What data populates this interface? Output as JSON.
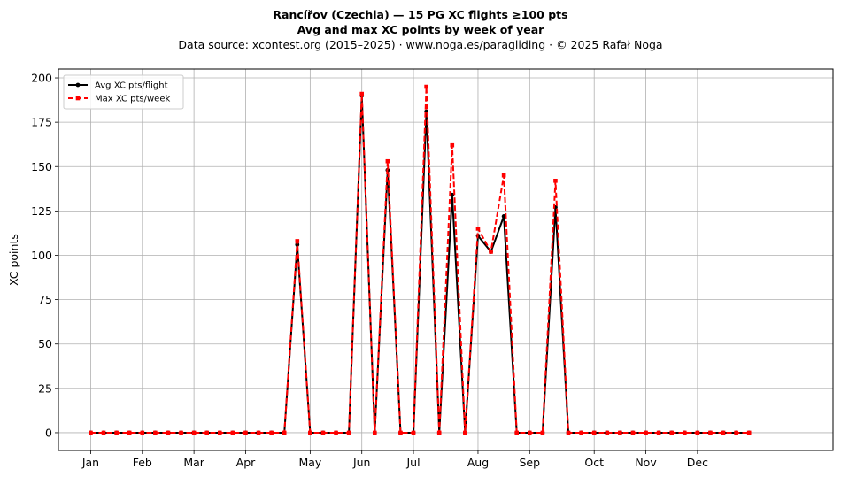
{
  "chart_data": {
    "type": "line",
    "title": "Rancířov (Czechia)  —  15 PG XC flights ≥100 pts",
    "subtitle": "Avg and max XC points by week of year",
    "source": "Data source: xcontest.org (2015–2025)  ·  www.noga.es/paragliding  ·  © 2025 Rafał Noga",
    "xlabel": "",
    "ylabel": "XC points",
    "ylim": [
      -10,
      205
    ],
    "yticks": [
      0,
      25,
      50,
      75,
      100,
      125,
      150,
      175,
      200
    ],
    "xlim": [
      -2.5,
      57.5
    ],
    "month_ticks": [
      {
        "label": "Jan",
        "week": 0
      },
      {
        "label": "Feb",
        "week": 4
      },
      {
        "label": "Mar",
        "week": 8
      },
      {
        "label": "Apr",
        "week": 12
      },
      {
        "label": "May",
        "week": 17
      },
      {
        "label": "Jun",
        "week": 21
      },
      {
        "label": "Jul",
        "week": 25
      },
      {
        "label": "Aug",
        "week": 30
      },
      {
        "label": "Sep",
        "week": 34
      },
      {
        "label": "Oct",
        "week": 39
      },
      {
        "label": "Nov",
        "week": 43
      },
      {
        "label": "Dec",
        "week": 47
      }
    ],
    "grid": true,
    "legend_position": "top-left",
    "x": [
      0,
      1,
      2,
      3,
      4,
      5,
      6,
      7,
      8,
      9,
      10,
      11,
      12,
      13,
      14,
      15,
      16,
      17,
      18,
      19,
      20,
      21,
      22,
      23,
      24,
      25,
      26,
      27,
      28,
      29,
      30,
      31,
      32,
      33,
      34,
      35,
      36,
      37,
      38,
      39,
      40,
      41,
      42,
      43,
      44,
      45,
      46,
      47,
      48,
      49,
      50,
      51
    ],
    "series": [
      {
        "name": "Avg XC pts/flight",
        "color": "#000000",
        "style": "solid",
        "marker": "circle",
        "values": [
          0,
          0,
          0,
          0,
          0,
          0,
          0,
          0,
          0,
          0,
          0,
          0,
          0,
          0,
          0,
          0,
          106,
          0,
          0,
          0,
          0,
          190,
          0,
          148,
          0,
          0,
          181,
          0,
          134,
          0,
          111,
          102,
          122,
          0,
          0,
          0,
          127,
          0,
          0,
          0,
          0,
          0,
          0,
          0,
          0,
          0,
          0,
          0,
          0,
          0,
          0,
          0
        ]
      },
      {
        "name": "Max XC pts/week",
        "color": "#ff0000",
        "style": "dashed",
        "marker": "square",
        "values": [
          0,
          0,
          0,
          0,
          0,
          0,
          0,
          0,
          0,
          0,
          0,
          0,
          0,
          0,
          0,
          0,
          108,
          0,
          0,
          0,
          0,
          191,
          0,
          153,
          0,
          0,
          195,
          0,
          162,
          0,
          115,
          102,
          145,
          0,
          0,
          0,
          142,
          0,
          0,
          0,
          0,
          0,
          0,
          0,
          0,
          0,
          0,
          0,
          0,
          0,
          0,
          0
        ]
      }
    ]
  }
}
